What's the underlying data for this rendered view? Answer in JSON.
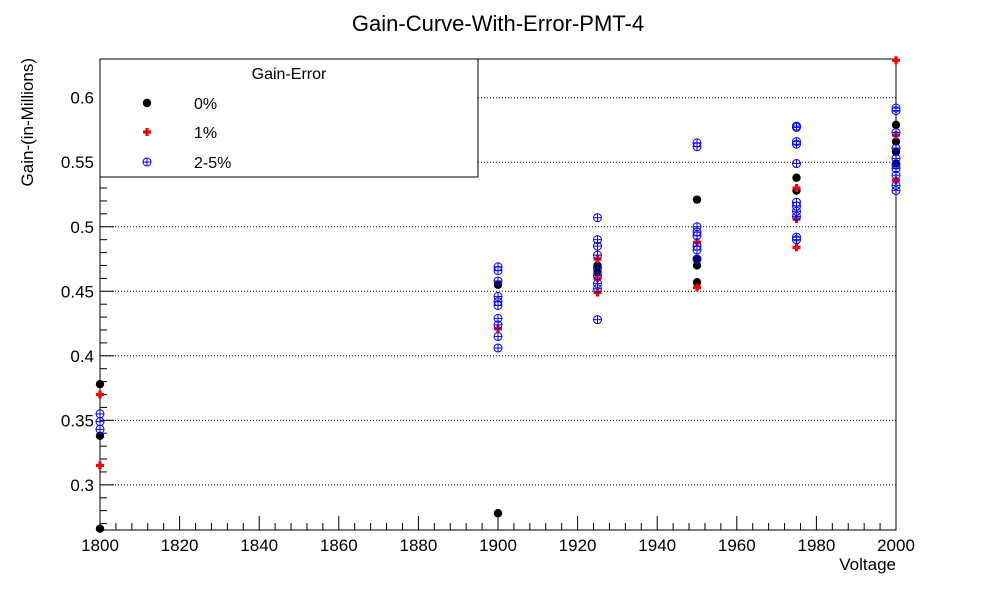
{
  "chart_data": {
    "type": "scatter",
    "title": "Gain-Curve-With-Error-PMT-4",
    "xlabel": "Voltage",
    "ylabel": "Gain-(in-Millions)",
    "xlim": [
      1800,
      2000
    ],
    "ylim": [
      0.265,
      0.63
    ],
    "x_ticks": [
      1800,
      1820,
      1840,
      1860,
      1880,
      1900,
      1920,
      1940,
      1960,
      1980,
      2000
    ],
    "y_ticks": [
      0.3,
      0.35,
      0.4,
      0.45,
      0.5,
      0.55,
      0.6
    ],
    "y_tick_labels": [
      "0.3",
      "0.35",
      "0.4",
      "0.45",
      "0.5",
      "0.55",
      "0.6"
    ],
    "grid": "horizontal-dotted",
    "legend": {
      "title": "Gain-Error",
      "placement": "top-left",
      "entries": [
        "0%",
        "1%",
        "2-5%"
      ]
    },
    "series": [
      {
        "name": "0%",
        "marker": "filled-circle",
        "color": "#000000",
        "points": [
          [
            1800,
            0.378
          ],
          [
            1800,
            0.338
          ],
          [
            1800,
            0.266
          ],
          [
            1900,
            0.455
          ],
          [
            1900,
            0.278
          ],
          [
            1925,
            0.47
          ],
          [
            1925,
            0.465
          ],
          [
            1950,
            0.521
          ],
          [
            1950,
            0.475
          ],
          [
            1950,
            0.47
          ],
          [
            1950,
            0.457
          ],
          [
            1975,
            0.538
          ],
          [
            1975,
            0.528
          ],
          [
            2000,
            0.579
          ],
          [
            2000,
            0.566
          ],
          [
            2000,
            0.558
          ],
          [
            2000,
            0.549
          ]
        ]
      },
      {
        "name": "1%",
        "marker": "plus",
        "color": "#ff0000",
        "points": [
          [
            1800,
            0.37
          ],
          [
            1800,
            0.315
          ],
          [
            1900,
            0.421
          ],
          [
            1925,
            0.475
          ],
          [
            1925,
            0.46
          ],
          [
            1925,
            0.449
          ],
          [
            1950,
            0.488
          ],
          [
            1950,
            0.453
          ],
          [
            1975,
            0.53
          ],
          [
            1975,
            0.506
          ],
          [
            1975,
            0.484
          ],
          [
            2000,
            0.629
          ],
          [
            2000,
            0.571
          ],
          [
            2000,
            0.536
          ]
        ]
      },
      {
        "name": "2-5%",
        "marker": "open-circle-plus",
        "color": "#0000ff",
        "points": [
          [
            1800,
            0.355
          ],
          [
            1800,
            0.349
          ],
          [
            1800,
            0.343
          ],
          [
            1900,
            0.469
          ],
          [
            1900,
            0.466
          ],
          [
            1900,
            0.458
          ],
          [
            1900,
            0.446
          ],
          [
            1900,
            0.442
          ],
          [
            1900,
            0.439
          ],
          [
            1900,
            0.429
          ],
          [
            1900,
            0.424
          ],
          [
            1900,
            0.415
          ],
          [
            1900,
            0.406
          ],
          [
            1925,
            0.507
          ],
          [
            1925,
            0.49
          ],
          [
            1925,
            0.485
          ],
          [
            1925,
            0.478
          ],
          [
            1925,
            0.468
          ],
          [
            1925,
            0.462
          ],
          [
            1925,
            0.456
          ],
          [
            1925,
            0.452
          ],
          [
            1925,
            0.428
          ],
          [
            1950,
            0.565
          ],
          [
            1950,
            0.562
          ],
          [
            1950,
            0.5
          ],
          [
            1950,
            0.496
          ],
          [
            1950,
            0.493
          ],
          [
            1950,
            0.485
          ],
          [
            1950,
            0.482
          ],
          [
            1950,
            0.475
          ],
          [
            1975,
            0.578
          ],
          [
            1975,
            0.577
          ],
          [
            1975,
            0.566
          ],
          [
            1975,
            0.564
          ],
          [
            1975,
            0.549
          ],
          [
            1975,
            0.519
          ],
          [
            1975,
            0.516
          ],
          [
            1975,
            0.512
          ],
          [
            1975,
            0.508
          ],
          [
            1975,
            0.492
          ],
          [
            1975,
            0.49
          ],
          [
            2000,
            0.592
          ],
          [
            2000,
            0.59
          ],
          [
            2000,
            0.573
          ],
          [
            2000,
            0.561
          ],
          [
            2000,
            0.553
          ],
          [
            2000,
            0.548
          ],
          [
            2000,
            0.545
          ],
          [
            2000,
            0.54
          ],
          [
            2000,
            0.532
          ],
          [
            2000,
            0.528
          ]
        ]
      }
    ]
  }
}
